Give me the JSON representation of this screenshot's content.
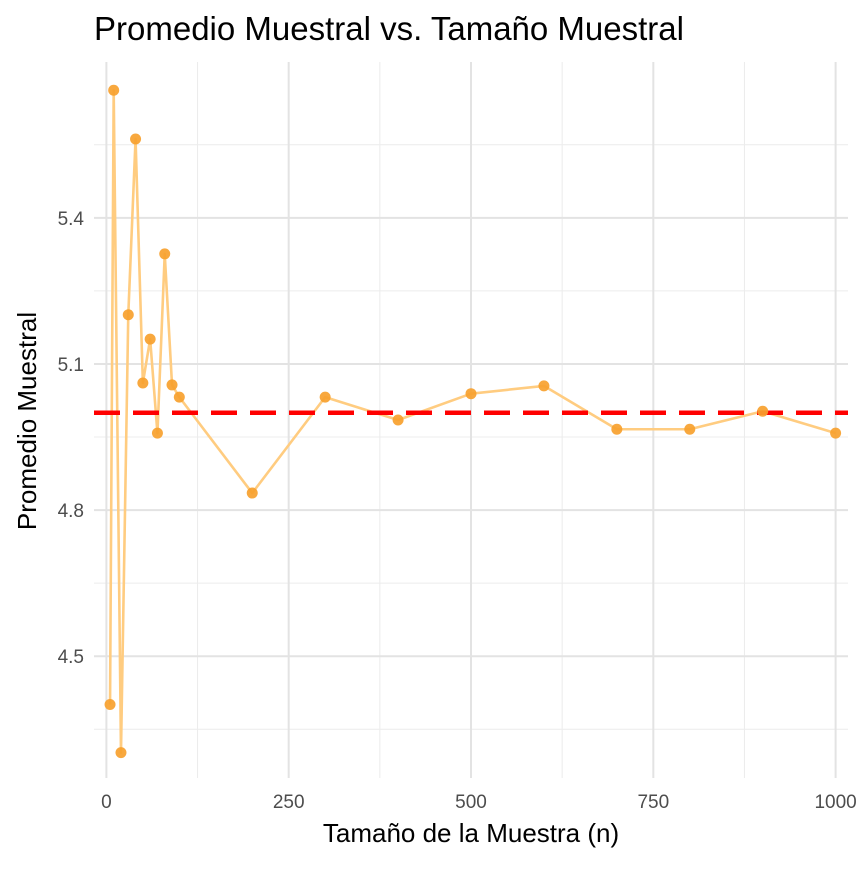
{
  "chart_data": {
    "type": "line",
    "title": "Promedio Muestral vs. Tamaño Muestral",
    "xlabel": "Tamaño de la Muestra (n)",
    "ylabel": "Promedio Muestral",
    "xlim": [
      -17,
      1017
    ],
    "ylim": [
      4.25,
      5.72
    ],
    "x_ticks": [
      0,
      250,
      500,
      750,
      1000
    ],
    "x_tick_labels": [
      "0",
      "250",
      "500",
      "750",
      "1000"
    ],
    "x_minor_ticks": [
      125,
      375,
      625,
      875
    ],
    "y_ticks": [
      4.5,
      4.8,
      5.1,
      5.4
    ],
    "y_tick_labels": [
      "4.5",
      "4.8",
      "5.1",
      "5.4"
    ],
    "y_minor_ticks": [
      4.35,
      4.65,
      4.95,
      5.25,
      5.55
    ],
    "grid": true,
    "reference_line": {
      "y": 5.0,
      "style": "dashed",
      "color": "#ff0000"
    },
    "series": [
      {
        "color_line": "#ffcc80",
        "color_point": "#f7a12e",
        "x": [
          5,
          10,
          20,
          30,
          40,
          50,
          60,
          70,
          80,
          90,
          100,
          200,
          300,
          400,
          500,
          600,
          700,
          800,
          900,
          1000
        ],
        "y": [
          4.401,
          5.662,
          4.302,
          5.201,
          5.562,
          5.061,
          5.151,
          4.958,
          5.326,
          5.057,
          5.032,
          4.835,
          5.032,
          4.985,
          5.039,
          5.055,
          4.966,
          4.966,
          5.003,
          4.958
        ]
      }
    ]
  }
}
